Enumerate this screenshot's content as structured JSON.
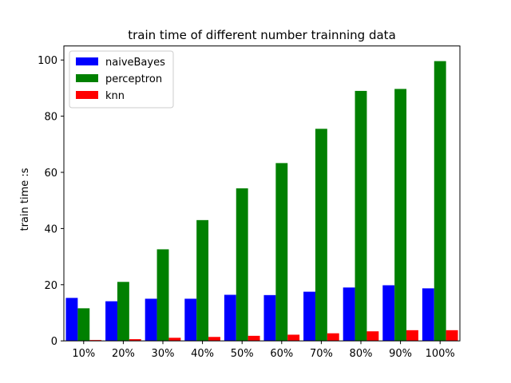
{
  "chart_data": {
    "type": "bar",
    "title": "train time of different number trainning data",
    "xlabel": "",
    "ylabel": "train time :s",
    "categories": [
      "10%",
      "20%",
      "30%",
      "40%",
      "50%",
      "60%",
      "70%",
      "80%",
      "90%",
      "100%"
    ],
    "ylim": [
      0,
      105
    ],
    "yticks": [
      0,
      20,
      40,
      60,
      80,
      100
    ],
    "grid": false,
    "legend_position": "top-left",
    "series": [
      {
        "name": "naiveBayes",
        "color": "#0000ff",
        "values": [
          15.3,
          14.1,
          15.0,
          15.0,
          16.4,
          16.3,
          17.5,
          19.0,
          19.8,
          18.7
        ]
      },
      {
        "name": "perceptron",
        "color": "#008000",
        "values": [
          11.6,
          21.0,
          32.6,
          43.0,
          54.3,
          63.3,
          75.5,
          89.0,
          89.7,
          99.6
        ]
      },
      {
        "name": "knn",
        "color": "#ff0000",
        "values": [
          0.3,
          0.6,
          1.1,
          1.4,
          1.8,
          2.2,
          2.7,
          3.4,
          3.8,
          3.8
        ]
      }
    ]
  }
}
